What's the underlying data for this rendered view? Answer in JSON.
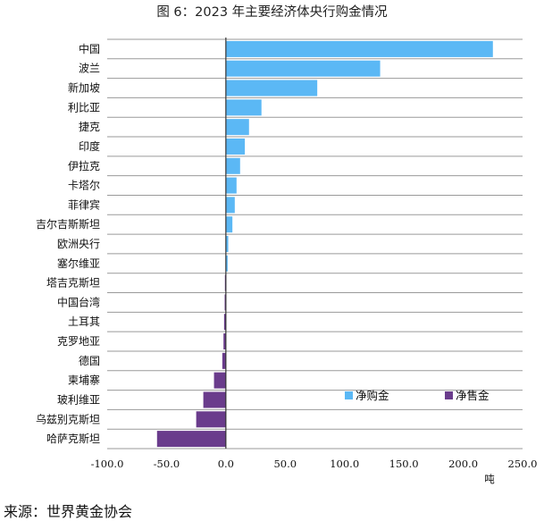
{
  "title": "图 6：2023 年主要经济体央行购金情况",
  "source": "来源：世界黄金协会",
  "chart_data": {
    "type": "bar",
    "orientation": "horizontal",
    "title": "图 6：2023 年主要经济体央行购金情况",
    "unit": "吨",
    "xlim": [
      -100,
      250
    ],
    "ticks": [
      "-100.0",
      "-50.0",
      "0.0",
      "50.0",
      "100.0",
      "150.0",
      "200.0",
      "250.0"
    ],
    "tick_values": [
      -100,
      -50,
      0,
      50,
      100,
      150,
      200,
      250
    ],
    "grid": true,
    "legend_position": "bottom-right",
    "series": [
      {
        "name": "净购金",
        "color": "#5BB8F5"
      },
      {
        "name": "净售金",
        "color": "#6A3C8C"
      }
    ],
    "categories": [
      "中国",
      "波兰",
      "新加坡",
      "利比亚",
      "捷克",
      "印度",
      "伊拉克",
      "卡塔尔",
      "菲律宾",
      "吉尔吉斯斯坦",
      "欧洲央行",
      "塞尔维亚",
      "塔吉克斯坦",
      "中国台湾",
      "土耳其",
      "克罗地亚",
      "德国",
      "柬埔寨",
      "玻利维亚",
      "乌兹别克斯坦",
      "哈萨克斯坦"
    ],
    "values": [
      225,
      130,
      77,
      30,
      19.5,
      16,
      12,
      9,
      7.5,
      5.5,
      2,
      1.5,
      -0.8,
      -1,
      -1.5,
      -2,
      -3,
      -10,
      -19,
      -25,
      -58
    ]
  }
}
